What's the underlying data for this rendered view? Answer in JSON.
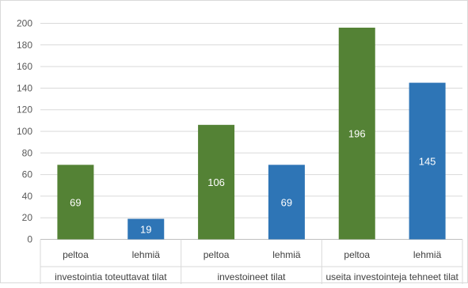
{
  "chart_data": {
    "type": "bar",
    "ylim": [
      0,
      200
    ],
    "y_ticks": [
      "0",
      "20",
      "40",
      "60",
      "80",
      "100",
      "120",
      "140",
      "160",
      "180",
      "200"
    ],
    "grid": true,
    "groups": [
      {
        "label": "investointia toteuttavat tilat",
        "bars": [
          {
            "label": "peltoa",
            "value": 69,
            "data_label": "69",
            "color": "#548235"
          },
          {
            "label": "lehmiä",
            "value": 19,
            "data_label": "19",
            "color": "#2e75b6"
          }
        ]
      },
      {
        "label": "investoineet tilat",
        "bars": [
          {
            "label": "peltoa",
            "value": 106,
            "data_label": "106",
            "color": "#548235"
          },
          {
            "label": "lehmiä",
            "value": 69,
            "data_label": "69",
            "color": "#2e75b6"
          }
        ]
      },
      {
        "label": "useita investointeja tehneet tilat",
        "bars": [
          {
            "label": "peltoa",
            "value": 196,
            "data_label": "196",
            "color": "#548235"
          },
          {
            "label": "lehmiä",
            "value": 145,
            "data_label": "145",
            "color": "#2e75b6"
          }
        ]
      }
    ]
  }
}
